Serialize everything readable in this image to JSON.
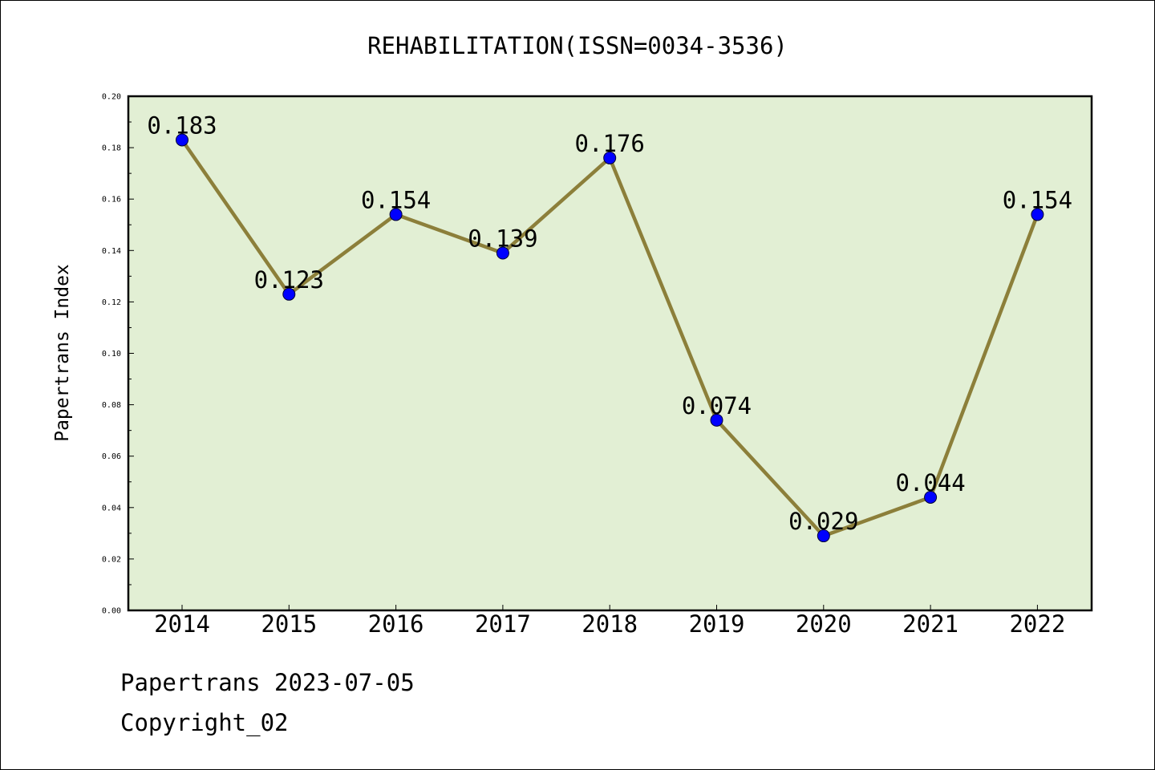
{
  "chart_data": {
    "type": "line",
    "title": "REHABILITATION(ISSN=0034-3536)",
    "xlabel": "",
    "ylabel": "Papertrans Index",
    "categories": [
      "2014",
      "2015",
      "2016",
      "2017",
      "2018",
      "2019",
      "2020",
      "2021",
      "2022"
    ],
    "series": [
      {
        "values": [
          0.183,
          0.123,
          0.154,
          0.139,
          0.176,
          0.074,
          0.029,
          0.044,
          0.154
        ]
      }
    ],
    "data_labels": [
      "0.183",
      "0.123",
      "0.154",
      "0.139",
      "0.176",
      "0.074",
      "0.029",
      "0.044",
      "0.154"
    ],
    "ylim": [
      0,
      0.2
    ],
    "yticks": [
      "0.00",
      "0.02",
      "0.04",
      "0.06",
      "0.08",
      "0.10",
      "0.12",
      "0.14",
      "0.16",
      "0.18",
      "0.20"
    ],
    "grid": false,
    "colors": {
      "plot_background": "#e2efd4",
      "line": "#8c7f3a",
      "marker": "#0000ff"
    }
  },
  "footer": {
    "source": "Papertrans 2023-07-05",
    "copyright": "Copyright_02"
  }
}
